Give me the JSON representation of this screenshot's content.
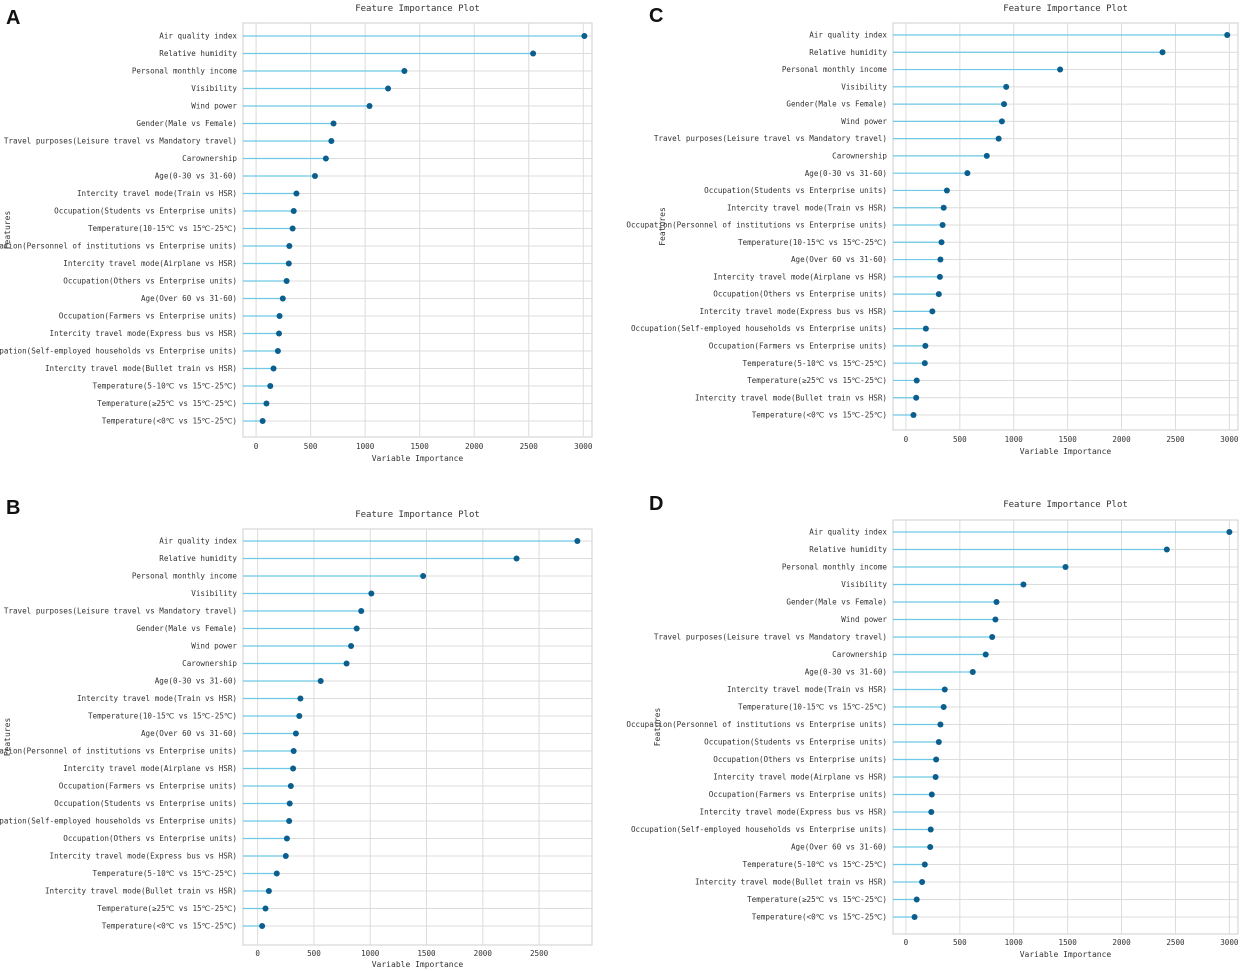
{
  "chart_data": [
    {
      "type": "lollipop",
      "panel": "A",
      "title": "Feature Importance Plot",
      "xlabel": "Variable Importance",
      "ylabel": "Features",
      "xlim": [
        -120,
        3080
      ],
      "xticks": [
        0,
        500,
        1000,
        1500,
        2000,
        2500,
        3000
      ],
      "features": [
        {
          "label": "Air quality index",
          "value": 3010
        },
        {
          "label": "Relative humidity",
          "value": 2540
        },
        {
          "label": "Personal monthly income",
          "value": 1360
        },
        {
          "label": "Visibility",
          "value": 1210
        },
        {
          "label": "Wind power",
          "value": 1040
        },
        {
          "label": "Gender(Male vs Female)",
          "value": 710
        },
        {
          "label": "Travel purposes(Leisure travel vs Mandatory travel)",
          "value": 690
        },
        {
          "label": "Carownership",
          "value": 640
        },
        {
          "label": "Age(0-30 vs 31-60)",
          "value": 540
        },
        {
          "label": "Intercity travel mode(Train vs HSR)",
          "value": 370
        },
        {
          "label": "Occupation(Students vs Enterprise units)",
          "value": 345
        },
        {
          "label": "Temperature(10-15℃ vs 15℃-25℃)",
          "value": 335
        },
        {
          "label": "Occupation(Personnel of institutions vs Enterprise units)",
          "value": 305
        },
        {
          "label": "Intercity travel mode(Airplane vs HSR)",
          "value": 300
        },
        {
          "label": "Occupation(Others vs Enterprise units)",
          "value": 280
        },
        {
          "label": "Age(Over 60 vs 31-60)",
          "value": 245
        },
        {
          "label": "Occupation(Farmers vs Enterprise units)",
          "value": 215
        },
        {
          "label": "Intercity travel mode(Express bus vs HSR)",
          "value": 210
        },
        {
          "label": "Occupation(Self-employed households vs Enterprise units)",
          "value": 200
        },
        {
          "label": "Intercity travel mode(Bullet train vs HSR)",
          "value": 160
        },
        {
          "label": "Temperature(5-10℃ vs 15℃-25℃)",
          "value": 130
        },
        {
          "label": "Temperature(≥25℃ vs 15℃-25℃)",
          "value": 95
        },
        {
          "label": "Temperature(<0℃ vs 15℃-25℃)",
          "value": 60
        }
      ]
    },
    {
      "type": "lollipop",
      "panel": "B",
      "title": "Feature Importance Plot",
      "xlabel": "Variable Importance",
      "ylabel": "Features",
      "xlim": [
        -130,
        2970
      ],
      "xticks": [
        0,
        500,
        1000,
        1500,
        2000,
        2500
      ],
      "features": [
        {
          "label": "Air quality index",
          "value": 2840
        },
        {
          "label": "Relative humidity",
          "value": 2300
        },
        {
          "label": "Personal monthly income",
          "value": 1470
        },
        {
          "label": "Visibility",
          "value": 1010
        },
        {
          "label": "Travel purposes(Leisure travel vs Mandatory travel)",
          "value": 920
        },
        {
          "label": "Gender(Male vs Female)",
          "value": 880
        },
        {
          "label": "Wind power",
          "value": 830
        },
        {
          "label": "Carownership",
          "value": 790
        },
        {
          "label": "Age(0-30 vs 31-60)",
          "value": 560
        },
        {
          "label": "Intercity travel mode(Train vs HSR)",
          "value": 380
        },
        {
          "label": "Temperature(10-15℃ vs 15℃-25℃)",
          "value": 370
        },
        {
          "label": "Age(Over 60 vs 31-60)",
          "value": 340
        },
        {
          "label": "Occupation(Personnel of institutions vs Enterprise units)",
          "value": 320
        },
        {
          "label": "Intercity travel mode(Airplane vs HSR)",
          "value": 315
        },
        {
          "label": "Occupation(Farmers vs Enterprise units)",
          "value": 295
        },
        {
          "label": "Occupation(Students vs Enterprise units)",
          "value": 285
        },
        {
          "label": "Occupation(Self-employed households vs Enterprise units)",
          "value": 280
        },
        {
          "label": "Occupation(Others vs Enterprise units)",
          "value": 260
        },
        {
          "label": "Intercity travel mode(Express bus vs HSR)",
          "value": 250
        },
        {
          "label": "Temperature(5-10℃ vs 15℃-25℃)",
          "value": 170
        },
        {
          "label": "Intercity travel mode(Bullet train vs HSR)",
          "value": 100
        },
        {
          "label": "Temperature(≥25℃ vs 15℃-25℃)",
          "value": 70
        },
        {
          "label": "Temperature(<0℃ vs 15℃-25℃)",
          "value": 40
        }
      ]
    },
    {
      "type": "lollipop",
      "panel": "C",
      "title": "Feature Importance Plot",
      "xlabel": "Variable Importance",
      "ylabel": "Features",
      "xlim": [
        -120,
        3080
      ],
      "xticks": [
        0,
        500,
        1000,
        1500,
        2000,
        2500,
        3000
      ],
      "features": [
        {
          "label": "Air quality index",
          "value": 2980
        },
        {
          "label": "Relative humidity",
          "value": 2380
        },
        {
          "label": "Personal monthly income",
          "value": 1430
        },
        {
          "label": "Visibility",
          "value": 930
        },
        {
          "label": "Gender(Male vs Female)",
          "value": 910
        },
        {
          "label": "Wind power",
          "value": 890
        },
        {
          "label": "Travel purposes(Leisure travel vs Mandatory travel)",
          "value": 860
        },
        {
          "label": "Carownership",
          "value": 750
        },
        {
          "label": "Age(0-30 vs 31-60)",
          "value": 570
        },
        {
          "label": "Occupation(Students vs Enterprise units)",
          "value": 380
        },
        {
          "label": "Intercity travel mode(Train vs HSR)",
          "value": 350
        },
        {
          "label": "Occupation(Personnel of institutions vs Enterprise units)",
          "value": 340
        },
        {
          "label": "Temperature(10-15℃ vs 15℃-25℃)",
          "value": 330
        },
        {
          "label": "Age(Over 60 vs 31-60)",
          "value": 320
        },
        {
          "label": "Intercity travel mode(Airplane vs HSR)",
          "value": 315
        },
        {
          "label": "Occupation(Others vs Enterprise units)",
          "value": 305
        },
        {
          "label": "Intercity travel mode(Express bus vs HSR)",
          "value": 245
        },
        {
          "label": "Occupation(Self-employed households vs Enterprise units)",
          "value": 185
        },
        {
          "label": "Occupation(Farmers vs Enterprise units)",
          "value": 180
        },
        {
          "label": "Temperature(5-10℃ vs 15℃-25℃)",
          "value": 175
        },
        {
          "label": "Temperature(≥25℃ vs 15℃-25℃)",
          "value": 100
        },
        {
          "label": "Intercity travel mode(Bullet train vs HSR)",
          "value": 95
        },
        {
          "label": "Temperature(<0℃ vs 15℃-25℃)",
          "value": 70
        }
      ]
    },
    {
      "type": "lollipop",
      "panel": "D",
      "title": "Feature Importance Plot",
      "xlabel": "Variable Importance",
      "ylabel": "Features",
      "xlim": [
        -120,
        3080
      ],
      "xticks": [
        0,
        500,
        1000,
        1500,
        2000,
        2500,
        3000
      ],
      "features": [
        {
          "label": "Air quality index",
          "value": 3000
        },
        {
          "label": "Relative humidity",
          "value": 2420
        },
        {
          "label": "Personal monthly income",
          "value": 1480
        },
        {
          "label": "Visibility",
          "value": 1090
        },
        {
          "label": "Gender(Male vs Female)",
          "value": 840
        },
        {
          "label": "Wind power",
          "value": 830
        },
        {
          "label": "Travel purposes(Leisure travel vs Mandatory travel)",
          "value": 800
        },
        {
          "label": "Carownership",
          "value": 740
        },
        {
          "label": "Age(0-30 vs 31-60)",
          "value": 620
        },
        {
          "label": "Intercity travel mode(Train vs HSR)",
          "value": 360
        },
        {
          "label": "Temperature(10-15℃ vs 15℃-25℃)",
          "value": 350
        },
        {
          "label": "Occupation(Personnel of institutions vs Enterprise units)",
          "value": 320
        },
        {
          "label": "Occupation(Students vs Enterprise units)",
          "value": 305
        },
        {
          "label": "Occupation(Others vs Enterprise units)",
          "value": 280
        },
        {
          "label": "Intercity travel mode(Airplane vs HSR)",
          "value": 275
        },
        {
          "label": "Occupation(Farmers vs Enterprise units)",
          "value": 240
        },
        {
          "label": "Intercity travel mode(Express bus vs HSR)",
          "value": 235
        },
        {
          "label": "Occupation(Self-employed households vs Enterprise units)",
          "value": 230
        },
        {
          "label": "Age(Over 60 vs 31-60)",
          "value": 225
        },
        {
          "label": "Temperature(5-10℃ vs 15℃-25℃)",
          "value": 175
        },
        {
          "label": "Intercity travel mode(Bullet train vs HSR)",
          "value": 150
        },
        {
          "label": "Temperature(≥25℃ vs 15℃-25℃)",
          "value": 100
        },
        {
          "label": "Temperature(<0℃ vs 15℃-25℃)",
          "value": 80
        }
      ]
    }
  ]
}
